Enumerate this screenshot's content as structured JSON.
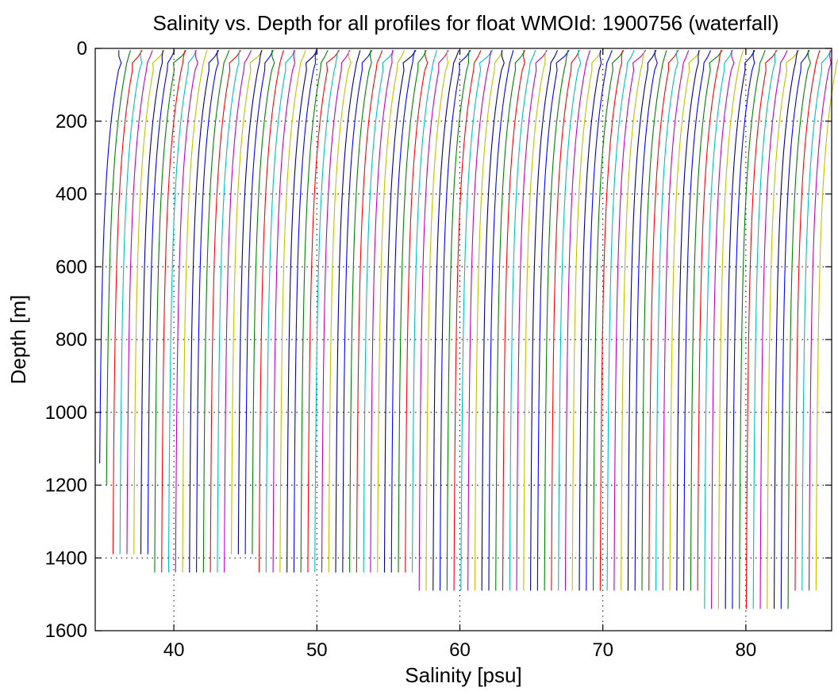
{
  "chart_data": {
    "type": "line",
    "title": "Salinity vs. Depth for all profiles for float WMOId: 1900756 (waterfall)",
    "xlabel": "Salinity [psu]",
    "ylabel": "Depth [m]",
    "xlim": [
      34.5,
      86
    ],
    "ylim": [
      1600,
      0
    ],
    "y_reversed": true,
    "grid": "dotted",
    "x_ticks": [
      40,
      50,
      60,
      70,
      80
    ],
    "y_ticks": [
      0,
      200,
      400,
      600,
      800,
      1000,
      1200,
      1400,
      1600
    ],
    "waterfall": {
      "profile_count": 104,
      "first_profile_deep_salinity": 34.65,
      "last_profile_deep_salinity": 84.8,
      "surface_shift_psu": 1.25,
      "mid_depth_shift_psu": 0.55,
      "series_colors": [
        "#0000ff",
        "#008000",
        "#ff0000",
        "#00bfbf",
        "#bf00bf",
        "#bfbf00",
        "#000080"
      ],
      "max_depths_by_index_range": [
        {
          "from": 0,
          "to": 0,
          "max_depth": 1140
        },
        {
          "from": 1,
          "to": 1,
          "max_depth": 1200
        },
        {
          "from": 2,
          "to": 7,
          "max_depth": 1390
        },
        {
          "from": 8,
          "to": 18,
          "max_depth": 1440
        },
        {
          "from": 19,
          "to": 22,
          "max_depth": 1390
        },
        {
          "from": 23,
          "to": 45,
          "max_depth": 1440
        },
        {
          "from": 46,
          "to": 57,
          "max_depth": 1490
        },
        {
          "from": 58,
          "to": 68,
          "max_depth": 1490
        },
        {
          "from": 69,
          "to": 86,
          "max_depth": 1490
        },
        {
          "from": 87,
          "to": 99,
          "max_depth": 1540
        },
        {
          "from": 100,
          "to": 103,
          "max_depth": 1490
        }
      ]
    }
  }
}
